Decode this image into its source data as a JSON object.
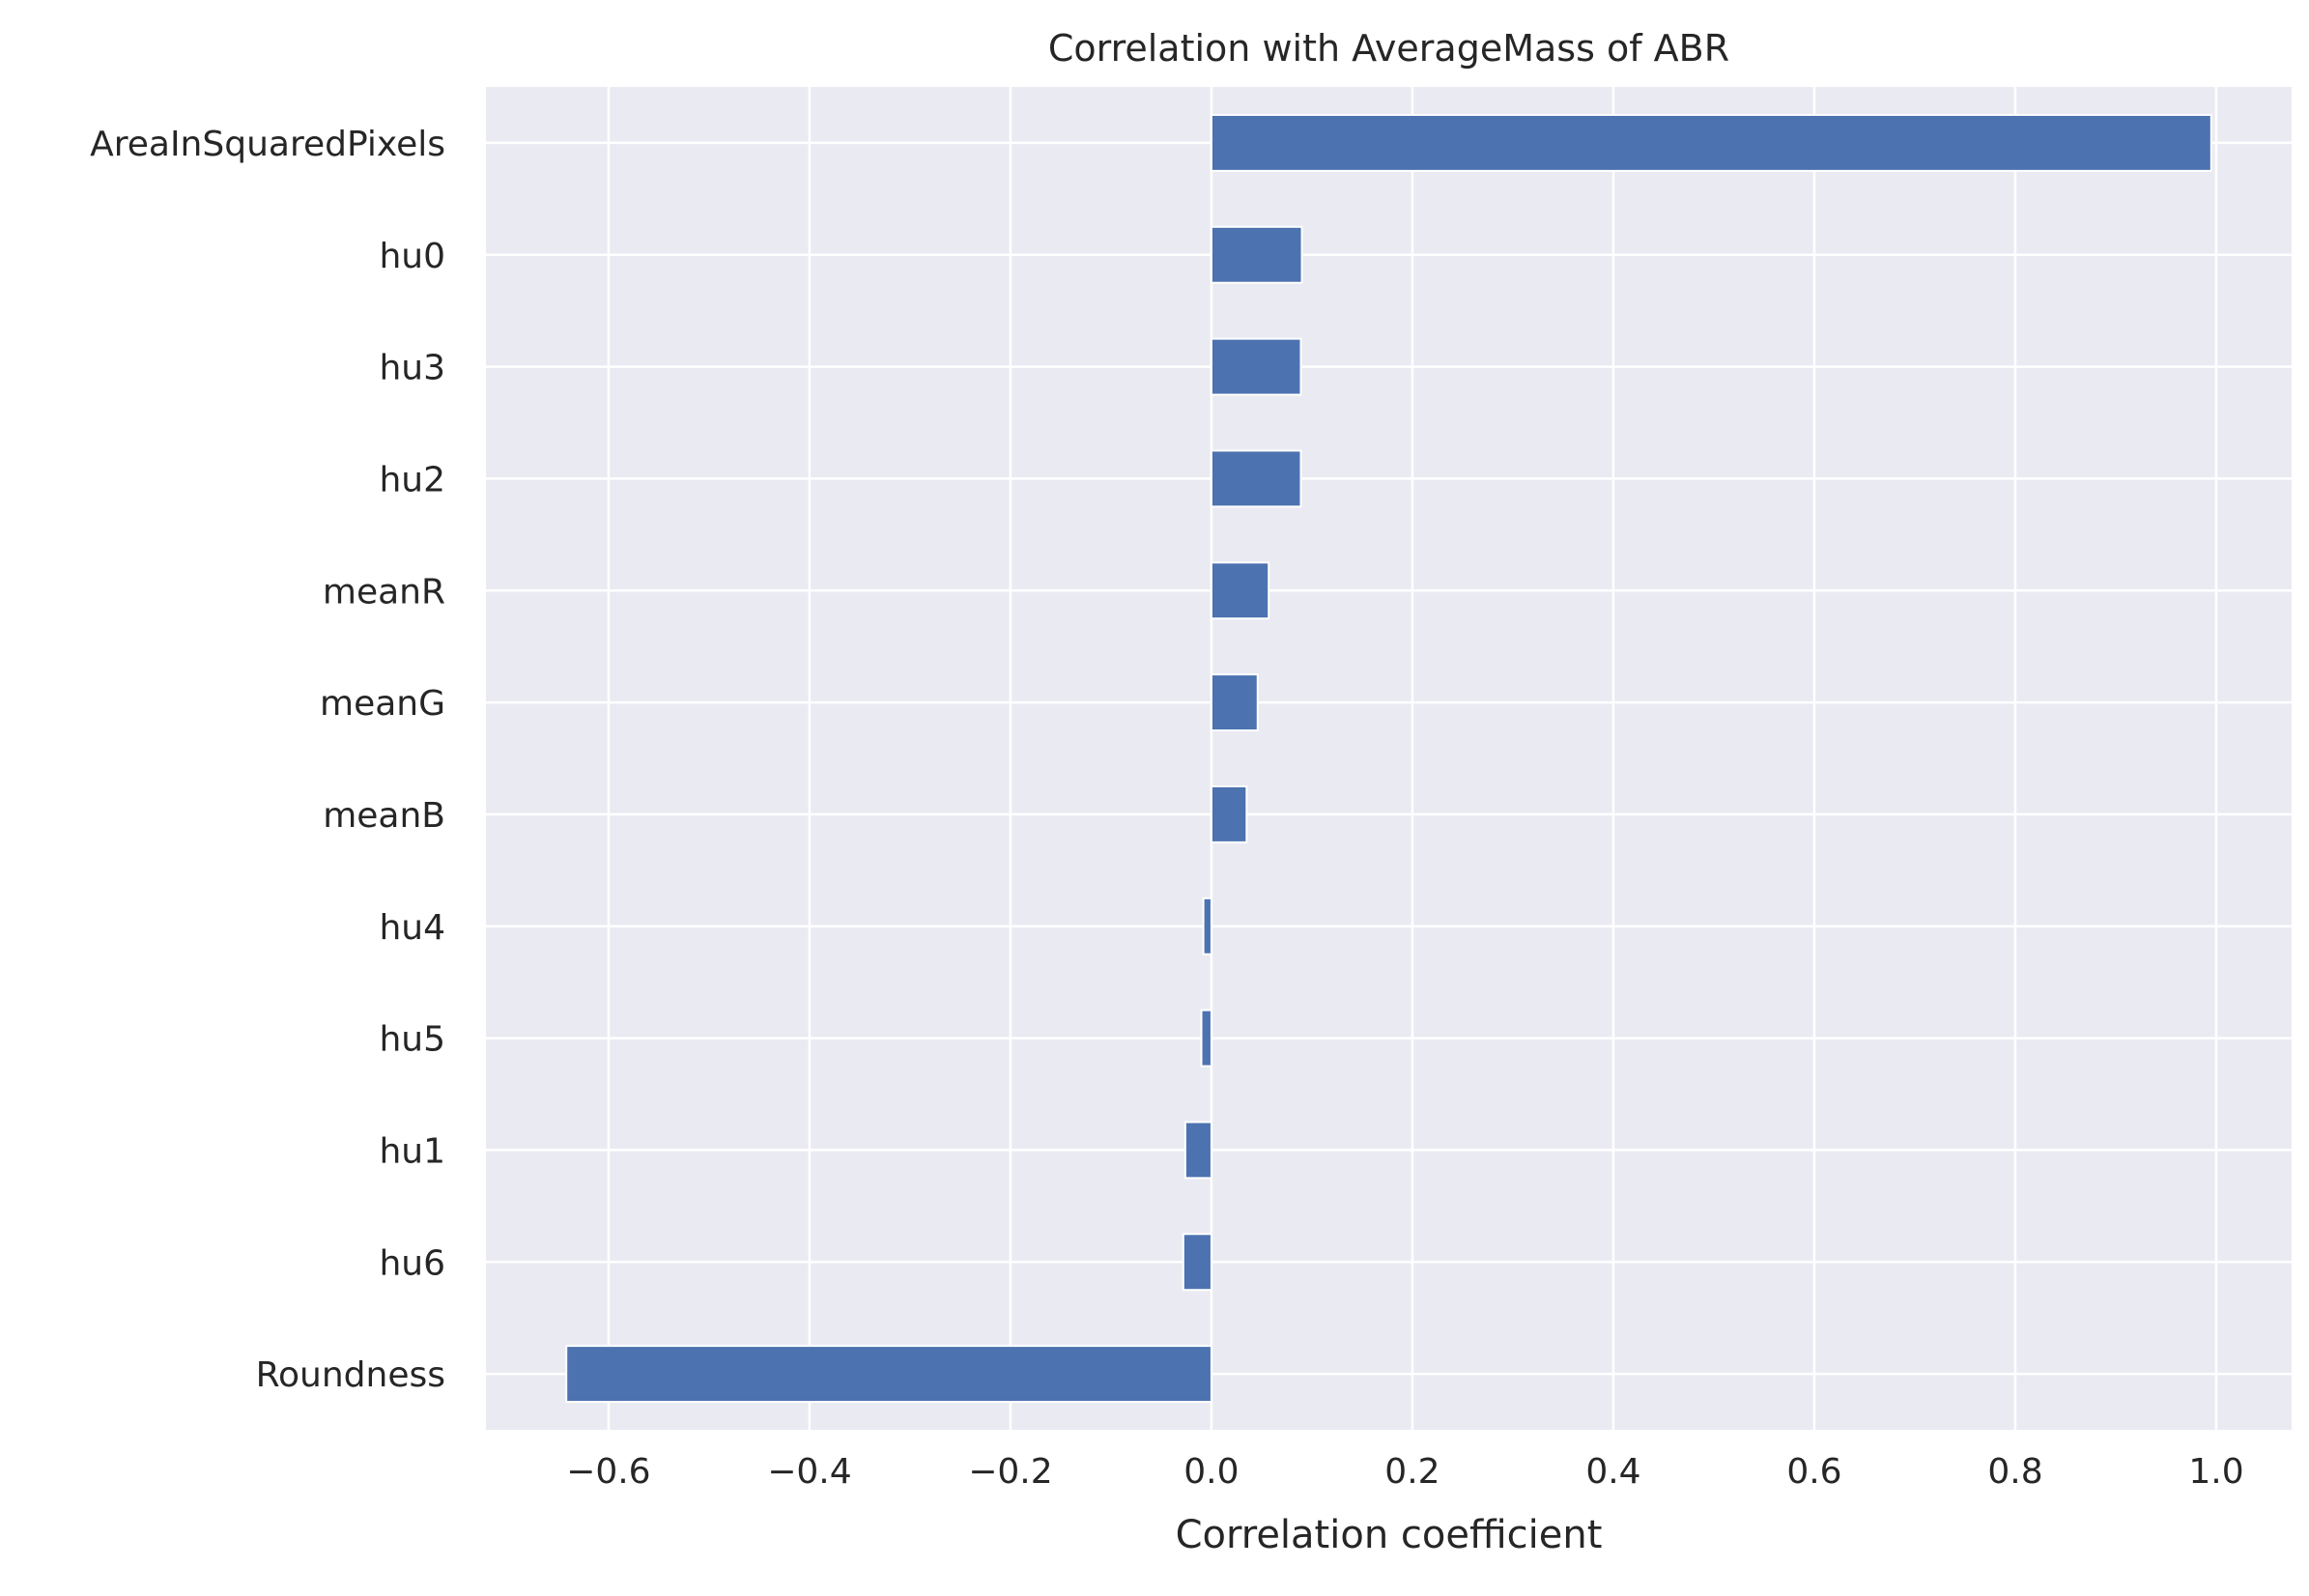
{
  "chart_data": {
    "type": "bar",
    "orientation": "horizontal",
    "title": "Correlation with AverageMass of ABR",
    "xlabel": "Correlation coefficient",
    "ylabel": "",
    "categories": [
      "AreaInSquaredPixels",
      "hu0",
      "hu3",
      "hu2",
      "meanR",
      "meanG",
      "meanB",
      "hu4",
      "hu5",
      "hu1",
      "hu6",
      "Roundness"
    ],
    "values": [
      0.995,
      0.09,
      0.089,
      0.089,
      0.057,
      0.046,
      0.035,
      -0.008,
      -0.01,
      -0.026,
      -0.028,
      -0.642
    ],
    "xlim": [
      -0.722,
      1.075
    ],
    "xticks": [
      -0.6,
      -0.4,
      -0.2,
      0.0,
      0.2,
      0.4,
      0.6,
      0.8,
      1.0
    ],
    "xtick_labels": [
      "−0.6",
      "−0.4",
      "−0.2",
      "0.0",
      "0.2",
      "0.4",
      "0.6",
      "0.8",
      "1.0"
    ],
    "grid": true,
    "colors": {
      "bar": "#4c72b0",
      "background": "#eaeaf2",
      "grid": "#ffffff",
      "text": "#262626"
    }
  }
}
